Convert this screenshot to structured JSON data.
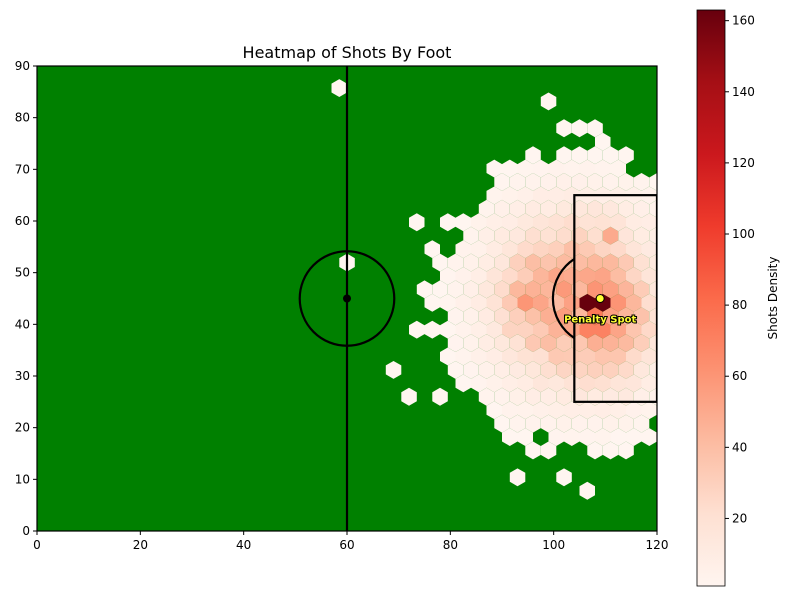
{
  "chart_data": {
    "type": "heatmap",
    "title": "Heatmap of Shots By Foot",
    "xlabel": "",
    "ylabel": "",
    "xlim": [
      0,
      120
    ],
    "ylim": [
      0,
      90
    ],
    "x_ticks": [
      0,
      20,
      40,
      60,
      80,
      100,
      120
    ],
    "y_ticks": [
      0,
      10,
      20,
      30,
      40,
      50,
      60,
      70,
      80,
      90
    ],
    "pitch_color": "#008000",
    "colormap": "Reds",
    "colorbar": {
      "label": "Shots Density",
      "range": [
        1,
        163
      ],
      "ticks": [
        20,
        40,
        60,
        80,
        100,
        120,
        140,
        160
      ]
    },
    "pitch_markings": {
      "halfway_line_x": 60,
      "center_spot": [
        60,
        45
      ],
      "center_circle_radius": 9.15,
      "penalty_box": {
        "x": [
          104,
          120
        ],
        "y": [
          25,
          65
        ]
      },
      "penalty_arc_radius": 9.15
    },
    "penalty_spot": {
      "label": "Penalty Spot",
      "x": 109,
      "y": 45,
      "color": "#ffff33"
    },
    "hexbin_gridsize": 40,
    "density_peaks": [
      {
        "x": 108,
        "y": 45,
        "value": 163
      },
      {
        "x": 107,
        "y": 42,
        "value": 75
      },
      {
        "x": 108,
        "y": 39,
        "value": 70
      },
      {
        "x": 95,
        "y": 45,
        "value": 60
      },
      {
        "x": 110,
        "y": 57,
        "value": 50
      },
      {
        "x": 97,
        "y": 53,
        "value": 40
      },
      {
        "x": 113,
        "y": 36,
        "value": 42
      }
    ]
  }
}
